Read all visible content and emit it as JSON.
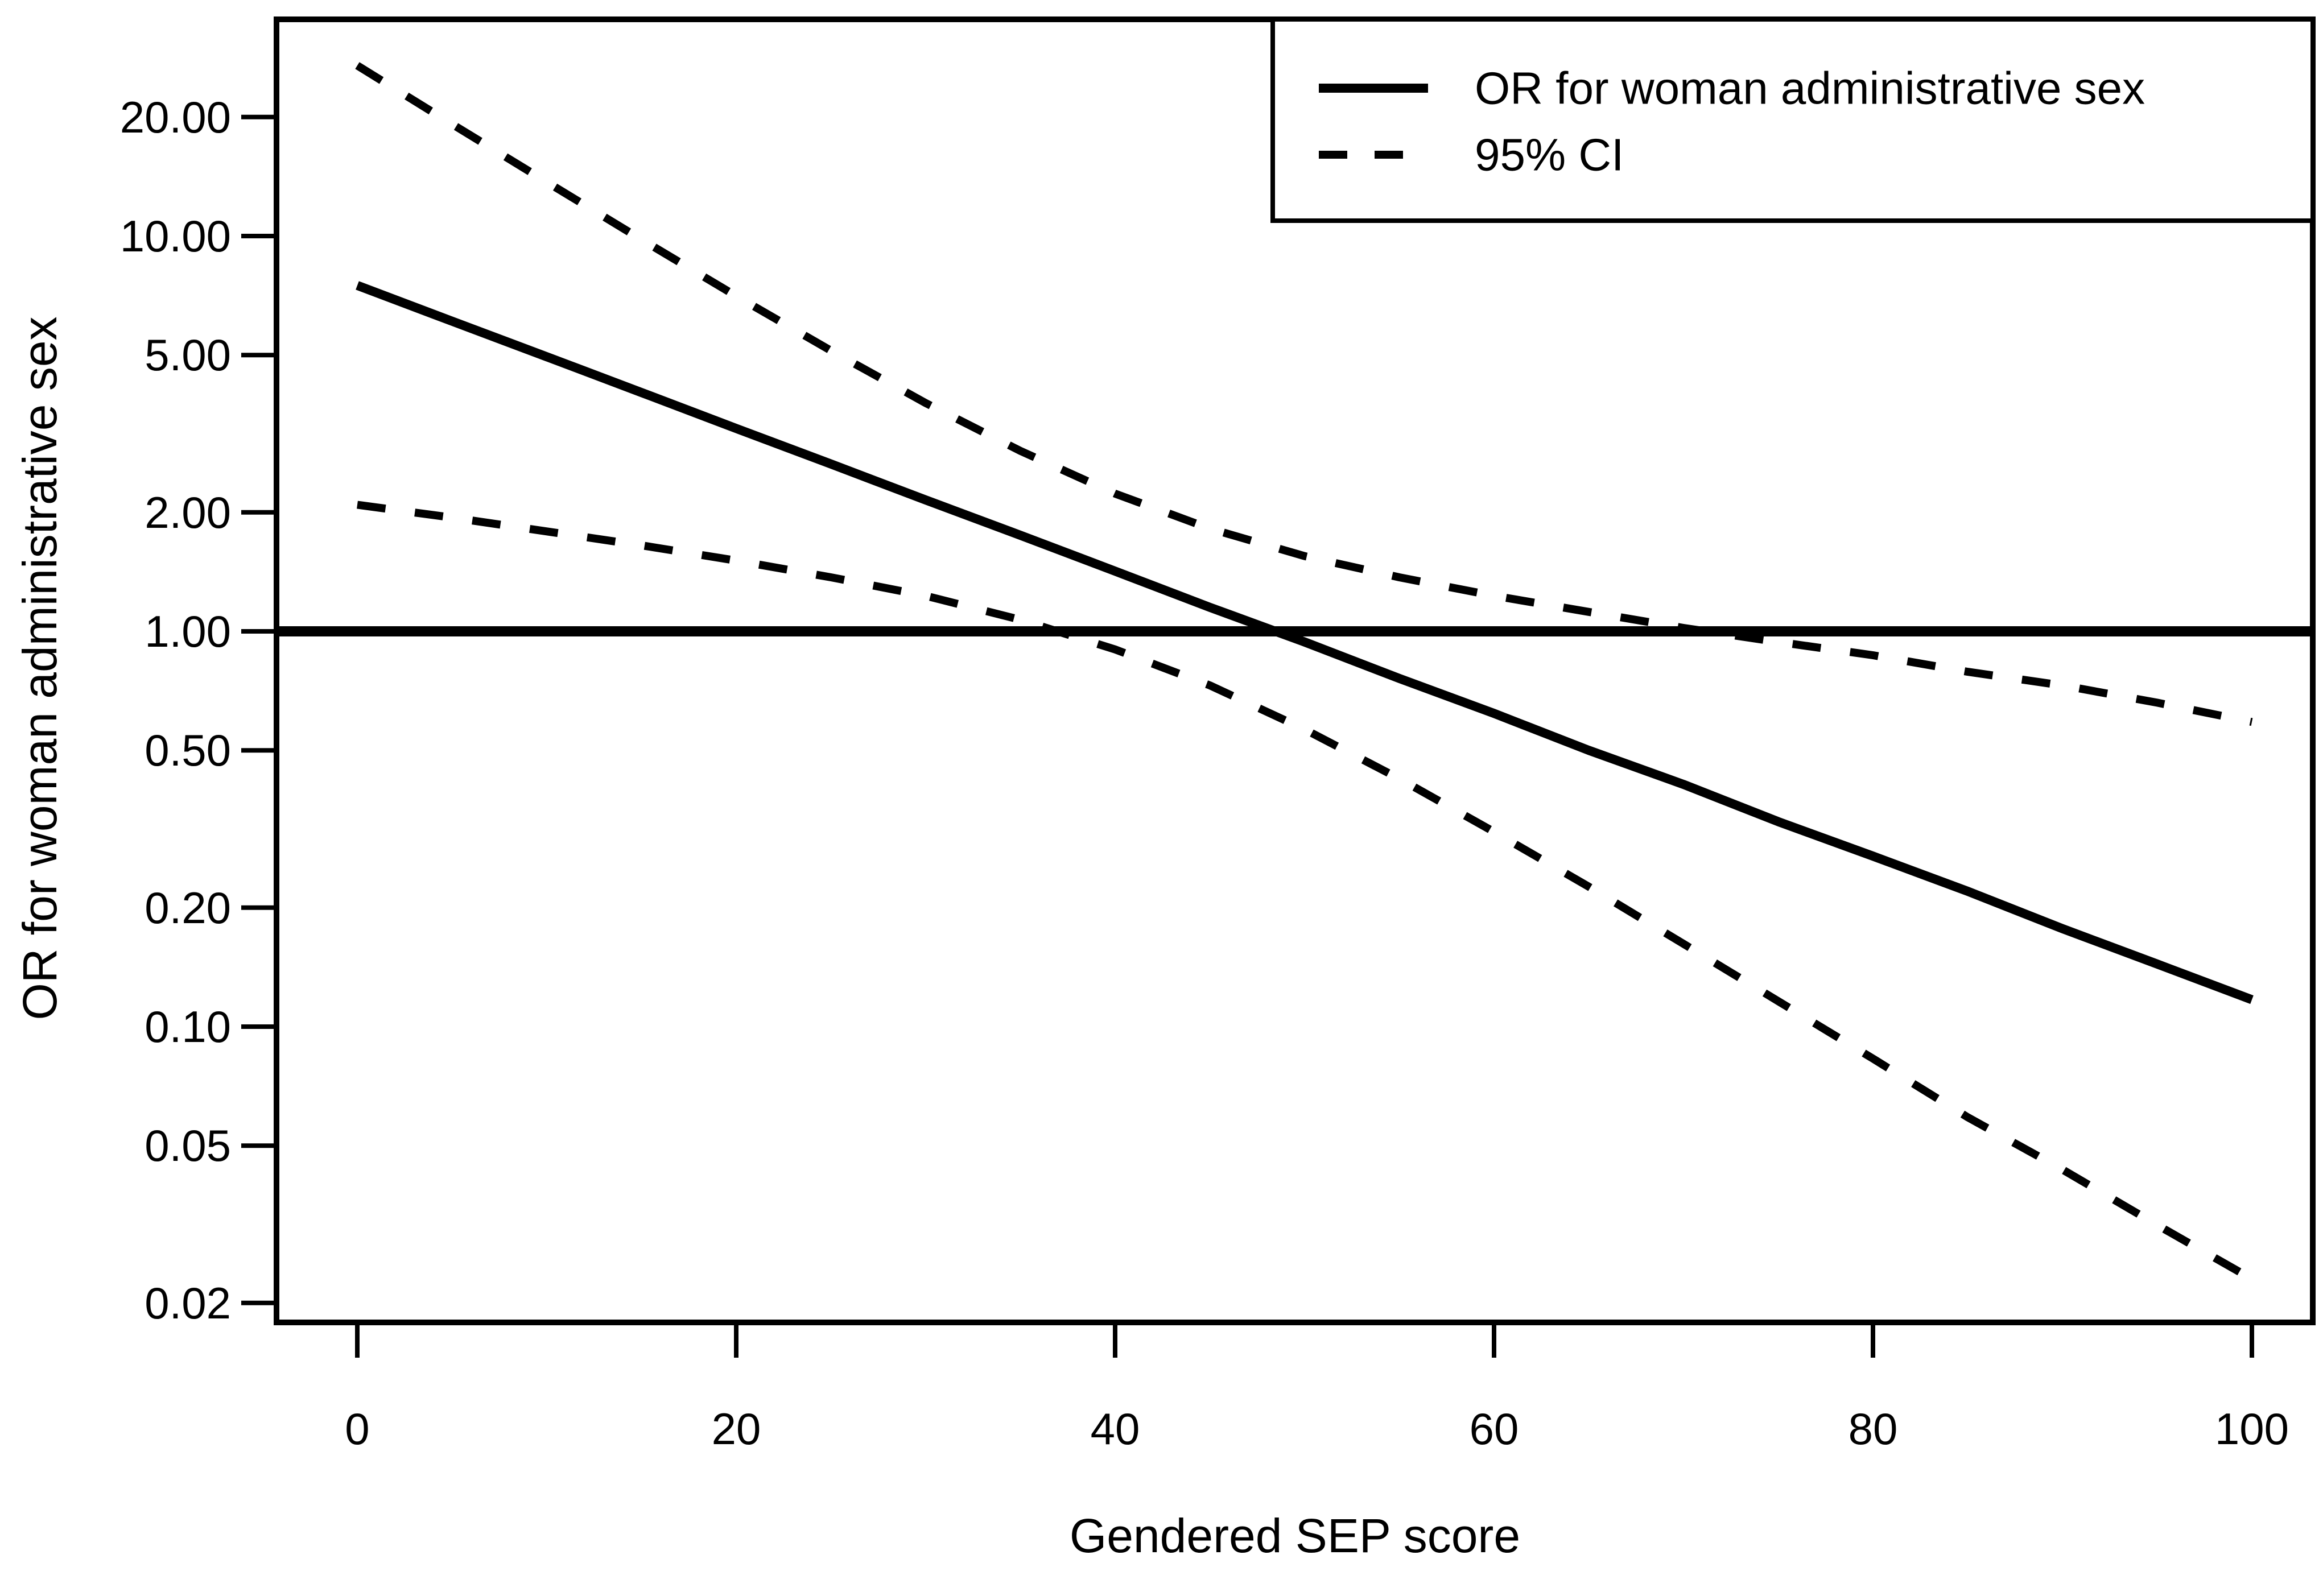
{
  "figure": {
    "background": "#ffffff",
    "ink": "#000000"
  },
  "chart_data": {
    "type": "line",
    "title": "",
    "xlabel": "Gendered SEP score",
    "ylabel": "OR for woman administrative sex",
    "yscale": "log",
    "xlim": [
      0,
      100
    ],
    "ylim": [
      0.018,
      35
    ],
    "grid": "off",
    "x_ticks": [
      0,
      20,
      40,
      60,
      80,
      100
    ],
    "x_tick_labels": [
      "0",
      "20",
      "40",
      "60",
      "80",
      "100"
    ],
    "y_ticks": [
      0.02,
      0.05,
      0.1,
      0.2,
      0.5,
      1.0,
      2.0,
      5.0,
      10.0,
      20.0
    ],
    "y_tick_labels": [
      "0.02",
      "0.05",
      "0.10",
      "0.20",
      "0.50",
      "1.00",
      "2.00",
      "5.00",
      "10.00",
      "20.00"
    ],
    "reference_line_y": 1.0,
    "x": [
      0,
      5,
      10,
      15,
      20,
      25,
      30,
      35,
      40,
      45,
      50,
      55,
      60,
      65,
      70,
      75,
      80,
      85,
      90,
      95,
      100
    ],
    "series": [
      {
        "name": "OR for woman administrative sex",
        "style": "solid",
        "values": [
          7.5,
          6.09,
          4.95,
          4.02,
          3.26,
          2.65,
          2.15,
          1.75,
          1.42,
          1.15,
          0.94,
          0.76,
          0.62,
          0.5,
          0.41,
          0.33,
          0.27,
          0.22,
          0.177,
          0.144,
          0.117
        ]
      },
      {
        "name": "95% CI upper",
        "style": "dashed",
        "values": [
          27.0,
          19.2,
          13.7,
          9.8,
          7.05,
          5.13,
          3.78,
          2.86,
          2.23,
          1.82,
          1.55,
          1.37,
          1.23,
          1.12,
          1.02,
          0.94,
          0.87,
          0.79,
          0.73,
          0.66,
          0.59
        ]
      },
      {
        "name": "95% CI lower",
        "style": "dashed",
        "values": [
          2.09,
          1.94,
          1.79,
          1.65,
          1.51,
          1.37,
          1.23,
          1.07,
          0.9,
          0.73,
          0.565,
          0.424,
          0.311,
          0.226,
          0.162,
          0.116,
          0.083,
          0.059,
          0.0435,
          0.0315,
          0.023
        ]
      }
    ],
    "legend": {
      "position": "top-right",
      "items": [
        {
          "label": "OR for woman administrative sex",
          "style": "solid"
        },
        {
          "label": "95% CI",
          "style": "dashed"
        }
      ]
    }
  }
}
